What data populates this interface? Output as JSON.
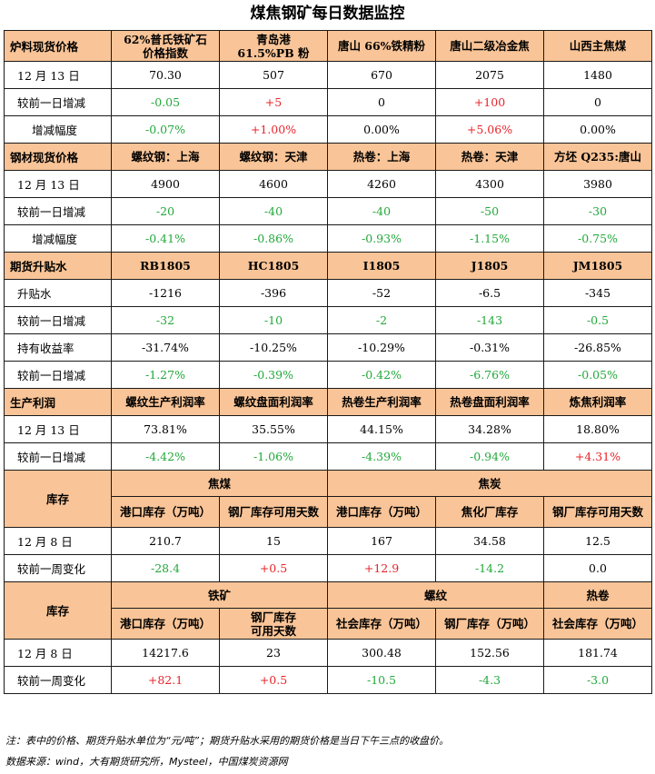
{
  "title": "煤焦钢矿每日数据监控",
  "sec1": {
    "header": [
      "炉料现货价格",
      "62%普氏铁矿石价格指数",
      "青岛港61.5%PB粉",
      "唐山 66%铁精粉",
      "唐山二级冶金焦",
      "山西主焦煤"
    ],
    "h1a": "62%普氏铁矿石",
    "h1b": "价格指数",
    "h2a": "青岛港",
    "h2b": "61.5%PB 粉",
    "rows": [
      {
        "label": "12 月 13 日",
        "vals": [
          "70.30",
          "507",
          "670",
          "2075",
          "1480"
        ],
        "cls": [
          "n",
          "n",
          "n",
          "n",
          "n"
        ]
      },
      {
        "label": "较前一日增减",
        "vals": [
          "-0.05",
          "+5",
          "0",
          "+100",
          "0"
        ],
        "cls": [
          "g",
          "r",
          "n",
          "r",
          "n"
        ]
      },
      {
        "label": "增减幅度",
        "vals": [
          "-0.07%",
          "+1.00%",
          "0.00%",
          "+5.06%",
          "0.00%"
        ],
        "cls": [
          "g",
          "r",
          "n",
          "r",
          "n"
        ]
      }
    ]
  },
  "sec2": {
    "header": [
      "钢材现货价格",
      "螺纹钢：上海",
      "螺纹钢：天津",
      "热卷：上海",
      "热卷：天津",
      "方坯 Q235:唐山"
    ],
    "rows": [
      {
        "label": "12 月 13 日",
        "vals": [
          "4900",
          "4600",
          "4260",
          "4300",
          "3980"
        ],
        "cls": [
          "n",
          "n",
          "n",
          "n",
          "n"
        ]
      },
      {
        "label": "较前一日增减",
        "vals": [
          "-20",
          "-40",
          "-40",
          "-50",
          "-30"
        ],
        "cls": [
          "g",
          "g",
          "g",
          "g",
          "g"
        ]
      },
      {
        "label": "增减幅度",
        "vals": [
          "-0.41%",
          "-0.86%",
          "-0.93%",
          "-1.15%",
          "-0.75%"
        ],
        "cls": [
          "g",
          "g",
          "g",
          "g",
          "g"
        ]
      }
    ]
  },
  "sec3": {
    "header": [
      "期货升贴水",
      "RB1805",
      "HC1805",
      "I1805",
      "J1805",
      "JM1805"
    ],
    "rows": [
      {
        "label": "升贴水",
        "vals": [
          "-1216",
          "-396",
          "-52",
          "-6.5",
          "-345"
        ],
        "cls": [
          "n",
          "n",
          "n",
          "n",
          "n"
        ]
      },
      {
        "label": "较前一日增减",
        "vals": [
          "-32",
          "-10",
          "-2",
          "-143",
          "-0.5"
        ],
        "cls": [
          "g",
          "g",
          "g",
          "g",
          "g"
        ]
      },
      {
        "label": "持有收益率",
        "vals": [
          "-31.74%",
          "-10.25%",
          "-10.29%",
          "-0.31%",
          "-26.85%"
        ],
        "cls": [
          "n",
          "n",
          "n",
          "n",
          "n"
        ]
      },
      {
        "label": "较前一日增减",
        "vals": [
          "-1.27%",
          "-0.39%",
          "-0.42%",
          "-6.76%",
          "-0.05%"
        ],
        "cls": [
          "g",
          "g",
          "g",
          "g",
          "g"
        ]
      }
    ]
  },
  "sec4": {
    "header": [
      "生产利润",
      "螺纹生产利润率",
      "螺纹盘面利润率",
      "热卷生产利润率",
      "热卷盘面利润率",
      "炼焦利润率"
    ],
    "rows": [
      {
        "label": "12 月 13 日",
        "vals": [
          "73.81%",
          "35.55%",
          "44.15%",
          "34.28%",
          "18.80%"
        ],
        "cls": [
          "n",
          "n",
          "n",
          "n",
          "n"
        ]
      },
      {
        "label": "较前一日增减",
        "vals": [
          "-4.42%",
          "-1.06%",
          "-4.39%",
          "-0.94%",
          "+4.31%"
        ],
        "cls": [
          "g",
          "g",
          "g",
          "g",
          "r"
        ]
      }
    ]
  },
  "sec5": {
    "label": "库存",
    "group1": "焦煤",
    "group2": "焦炭",
    "sub1": "港口库存（万吨）",
    "sub2": "钢厂库存可用天数",
    "sub3": "港口库存（万吨）",
    "sub4": "焦化厂库存",
    "sub5": "钢厂库存可用天数",
    "rows": [
      {
        "label": "12 月 8 日",
        "vals": [
          "210.7",
          "15",
          "167",
          "34.58",
          "12.5"
        ],
        "cls": [
          "n",
          "n",
          "n",
          "n",
          "n"
        ]
      },
      {
        "label": "较前一周变化",
        "vals": [
          "-28.4",
          "+0.5",
          "+12.9",
          "-14.2",
          "0.0"
        ],
        "cls": [
          "g",
          "r",
          "r",
          "g",
          "n"
        ]
      }
    ]
  },
  "sec6": {
    "label": "库存",
    "group1": "铁矿",
    "group2": "螺纹",
    "group3": "热卷",
    "sub1": "港口库存（万吨）",
    "sub2a": "钢厂库存",
    "sub2b": "可用天数",
    "sub3": "社会库存（万吨）",
    "sub4": "钢厂库存（万吨）",
    "sub5": "社会库存（万吨）",
    "rows": [
      {
        "label": "12 月 8 日",
        "vals": [
          "14217.6",
          "23",
          "300.48",
          "152.56",
          "181.74"
        ],
        "cls": [
          "n",
          "n",
          "n",
          "n",
          "n"
        ]
      },
      {
        "label": "较前一周变化",
        "vals": [
          "+82.1",
          "+0.5",
          "-10.5",
          "-4.3",
          "-3.0"
        ],
        "cls": [
          "r",
          "r",
          "g",
          "g",
          "g"
        ]
      }
    ]
  },
  "notes": {
    "note": "注：表中的价格、期货升贴水单位为“元/吨”；期货升贴水采用的期货价格是当日下午三点的收盘价。",
    "source": "数据来源：wind，大有期货研究所，Mysteel，中国煤炭资源网"
  }
}
